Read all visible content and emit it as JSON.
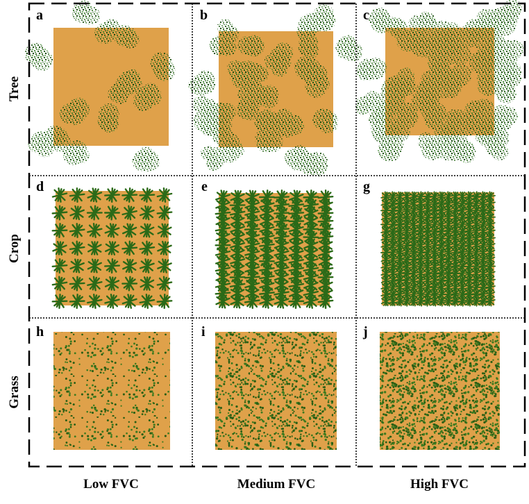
{
  "rows": [
    "Tree",
    "Crop",
    "Grass"
  ],
  "columns": [
    "Low FVC",
    "Medium FVC",
    "High FVC"
  ],
  "panels": [
    "a",
    "b",
    "c",
    "d",
    "e",
    "g",
    "h",
    "i",
    "j"
  ]
}
